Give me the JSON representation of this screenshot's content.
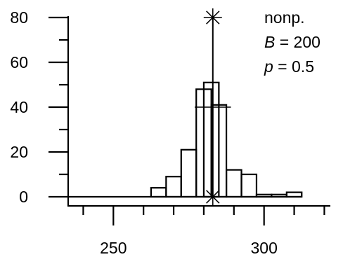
{
  "chart_data": {
    "type": "bar",
    "subtype": "histogram",
    "xlim": [
      235,
      322
    ],
    "ylim": [
      0,
      80
    ],
    "x_ticks": [
      250,
      300
    ],
    "x_tick_labels": [
      "250",
      "300"
    ],
    "y_ticks": [
      0,
      20,
      40,
      60,
      80
    ],
    "y_tick_labels": [
      "0",
      "20",
      "40",
      "60",
      "80"
    ],
    "bin_width": 5,
    "bins": [
      {
        "start": 262.5,
        "value": 4
      },
      {
        "start": 267.5,
        "value": 9
      },
      {
        "start": 272.5,
        "value": 21
      },
      {
        "start": 277.5,
        "value": 48
      },
      {
        "start": 282.5,
        "value": 41
      },
      {
        "start": 287.5,
        "value": 12
      },
      {
        "start": 292.5,
        "value": 10
      },
      {
        "start": 297.5,
        "value": 1
      },
      {
        "start": 302.5,
        "value": 1
      },
      {
        "start": 307.5,
        "value": 2
      }
    ],
    "overlay_bar": {
      "start": 280,
      "width": 5,
      "value": 51
    },
    "reference_line": {
      "x": 283,
      "y_top": 80,
      "y_bottom": 0
    },
    "horizontal_segment": {
      "x_start": 277,
      "x_end": 289,
      "y": 40
    },
    "grid": false,
    "annotation": {
      "line1": "nonp.",
      "line2_var": "B",
      "line2_rest": " = 200",
      "line3_var": "p",
      "line3_rest": " = 0.5"
    }
  }
}
